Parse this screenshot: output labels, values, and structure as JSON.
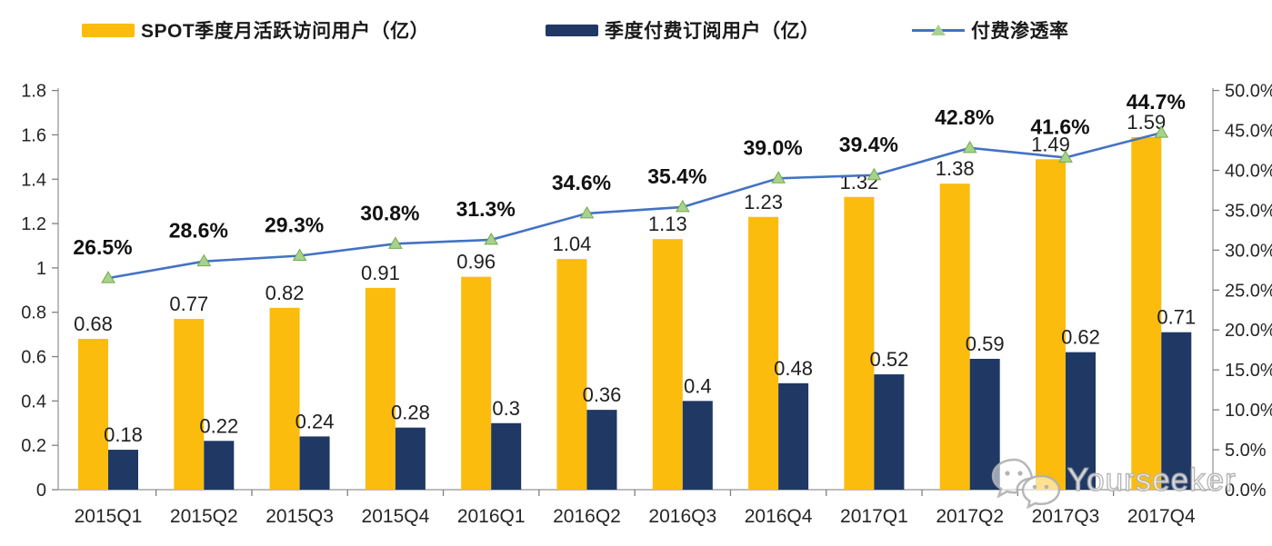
{
  "colors": {
    "mau_bar": "#FBBC0E",
    "subs_bar": "#1F3864",
    "line": "#4472C4",
    "marker_fill": "#A9D18E",
    "marker_edge": "#70AD47",
    "axis_line": "#a6a6a6",
    "tick": "#808080",
    "axis_text": "#262626",
    "value_text": "#1f1f1f",
    "percent_text": "#111111"
  },
  "legend": {
    "items": [
      {
        "label": "SPOT季度月活跃访问用户（亿）",
        "type": "bar",
        "color_key": "mau_bar"
      },
      {
        "label": "季度付费订阅用户（亿）",
        "type": "bar",
        "color_key": "subs_bar"
      },
      {
        "label": "付费渗透率",
        "type": "line",
        "color_key": "line"
      }
    ]
  },
  "watermark": {
    "text": "Yourseeker",
    "icon": "wechat-icon"
  },
  "chart_data": {
    "type": "bar",
    "subtype": "grouped bars + line (dual axis combo)",
    "title": "",
    "categories": [
      "2015Q1",
      "2015Q2",
      "2015Q3",
      "2015Q4",
      "2016Q1",
      "2016Q2",
      "2016Q3",
      "2016Q4",
      "2017Q1",
      "2017Q2",
      "2017Q3",
      "2017Q4"
    ],
    "series": [
      {
        "name": "SPOT季度月活跃访问用户（亿）",
        "type": "bar",
        "axis": "left",
        "values": [
          0.68,
          0.77,
          0.82,
          0.91,
          0.96,
          1.04,
          1.13,
          1.23,
          1.32,
          1.38,
          1.49,
          1.59
        ],
        "labels": [
          "0.68",
          "0.77",
          "0.82",
          "0.91",
          "0.96",
          "1.04",
          "1.13",
          "1.23",
          "1.32",
          "1.38",
          "1.49",
          "1.59"
        ]
      },
      {
        "name": "季度付费订阅用户（亿）",
        "type": "bar",
        "axis": "left",
        "values": [
          0.18,
          0.22,
          0.24,
          0.28,
          0.3,
          0.36,
          0.4,
          0.48,
          0.52,
          0.59,
          0.62,
          0.71
        ],
        "labels": [
          "0.18",
          "0.22",
          "0.24",
          "0.28",
          "0.3",
          "0.36",
          "0.4",
          "0.48",
          "0.52",
          "0.59",
          "0.62",
          "0.71"
        ]
      },
      {
        "name": "付费渗透率",
        "type": "line",
        "axis": "right",
        "values": [
          26.5,
          28.6,
          29.3,
          30.8,
          31.3,
          34.6,
          35.4,
          39.0,
          39.4,
          42.8,
          41.6,
          44.7
        ],
        "labels": [
          "26.5%",
          "28.6%",
          "29.3%",
          "30.8%",
          "31.3%",
          "34.6%",
          "35.4%",
          "39.0%",
          "39.4%",
          "42.8%",
          "41.6%",
          "44.7%"
        ]
      }
    ],
    "left_axis": {
      "min": 0,
      "max": 1.8,
      "step": 0.2,
      "tick_labels": [
        "0",
        "0.2",
        "0.4",
        "0.6",
        "0.8",
        "1",
        "1.2",
        "1.4",
        "1.6",
        "1.8"
      ]
    },
    "right_axis": {
      "min": 0,
      "max": 50,
      "step": 5,
      "tick_labels": [
        "0.0%",
        "5.0%",
        "10.0%",
        "15.0%",
        "20.0%",
        "25.0%",
        "30.0%",
        "35.0%",
        "40.0%",
        "45.0%",
        "50.0%"
      ]
    },
    "xlabel": "",
    "ylabel": "",
    "grid": false,
    "legend_position": "top"
  }
}
